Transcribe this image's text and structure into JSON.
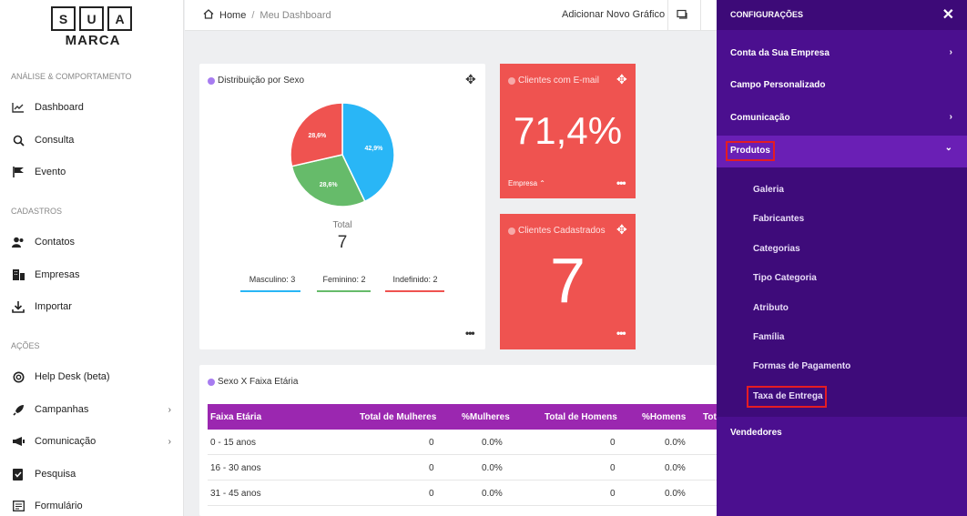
{
  "logo": {
    "letters": [
      "S",
      "U",
      "A"
    ],
    "sub": "MARCA"
  },
  "sidebar": {
    "sections": [
      "ANÁLISE & COMPORTAMENTO",
      "CADASTROS",
      "AÇÕES"
    ],
    "items": [
      {
        "label": "Dashboard",
        "icon": "chart-icon"
      },
      {
        "label": "Consulta",
        "icon": "search-icon"
      },
      {
        "label": "Evento",
        "icon": "flag-icon"
      },
      {
        "label": "Contatos",
        "icon": "contacts-icon"
      },
      {
        "label": "Empresas",
        "icon": "building-icon"
      },
      {
        "label": "Importar",
        "icon": "import-icon"
      },
      {
        "label": "Help Desk (beta)",
        "icon": "lifebuoy-icon"
      },
      {
        "label": "Campanhas",
        "icon": "rocket-icon",
        "arrow": "›"
      },
      {
        "label": "Comunicação",
        "icon": "megaphone-icon",
        "arrow": "›"
      },
      {
        "label": "Pesquisa",
        "icon": "survey-icon"
      },
      {
        "label": "Formulário",
        "icon": "form-icon"
      }
    ]
  },
  "header": {
    "home": "Home",
    "separator": "/",
    "current": "Meu Dashboard",
    "add_chart": "Adicionar Novo Gráfico"
  },
  "cards": {
    "sex": {
      "title": "Distribuição por Sexo",
      "total_label": "Total",
      "total_value": "7",
      "legend": [
        {
          "label": "Masculino: 3",
          "color": "#29b6f6"
        },
        {
          "label": "Feminino: 2",
          "color": "#66bb6a"
        },
        {
          "label": "Indefinido: 2",
          "color": "#ef5350"
        }
      ]
    },
    "email": {
      "title": "Clientes com E-mail",
      "value": "71,4%",
      "footer": "Empresa ⌃"
    },
    "registered": {
      "title": "Clientes Cadastrados",
      "value": "7"
    },
    "age": {
      "title": "Sexo X Faixa Etária"
    }
  },
  "chart_data": {
    "type": "pie",
    "categories": [
      "Masculino",
      "Feminino",
      "Indefinido"
    ],
    "values": [
      42.9,
      28.6,
      28.6
    ],
    "labels": [
      "42,9%",
      "28,6%",
      "28,6%"
    ],
    "colors": [
      "#29b6f6",
      "#66bb6a",
      "#ef5350"
    ]
  },
  "table": {
    "headers": [
      "Faixa Etária",
      "Total de Mulheres",
      "%Mulheres",
      "Total de Homens",
      "%Homens",
      "Tot"
    ],
    "rows": [
      [
        "0 - 15 anos",
        "0",
        "0.0%",
        "0",
        "0.0%"
      ],
      [
        "16 - 30 anos",
        "0",
        "0.0%",
        "0",
        "0.0%"
      ],
      [
        "31 - 45 anos",
        "0",
        "0.0%",
        "0",
        "0.0%"
      ]
    ]
  },
  "panel": {
    "title": "CONFIGURAÇÕES",
    "close": "✕",
    "items": [
      {
        "label": "Conta da Sua Empresa",
        "arrow": "›"
      },
      {
        "label": "Campo Personalizado",
        "arrow": ""
      },
      {
        "label": "Comunicação",
        "arrow": "›"
      },
      {
        "label": "Produtos",
        "arrow": "⌄"
      },
      {
        "label": "Vendedores",
        "arrow": ""
      }
    ],
    "sub_items": [
      "Galeria",
      "Fabricantes",
      "Categorias",
      "Tipo Categoria",
      "Atributo",
      "Família",
      "Formas de Pagamento",
      "Taxa de Entrega"
    ]
  }
}
